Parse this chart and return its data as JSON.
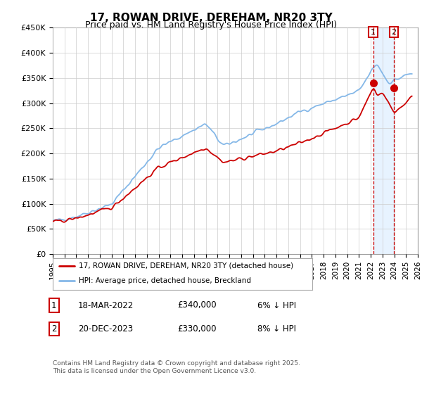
{
  "title": "17, ROWAN DRIVE, DEREHAM, NR20 3TY",
  "subtitle": "Price paid vs. HM Land Registry's House Price Index (HPI)",
  "ylim": [
    0,
    450000
  ],
  "yticks": [
    0,
    50000,
    100000,
    150000,
    200000,
    250000,
    300000,
    350000,
    400000,
    450000
  ],
  "ytick_labels": [
    "£0",
    "£50K",
    "£100K",
    "£150K",
    "£200K",
    "£250K",
    "£300K",
    "£350K",
    "£400K",
    "£450K"
  ],
  "hpi_color": "#85b8e8",
  "price_color": "#cc0000",
  "vline_color": "#cc0000",
  "shade_color": "#ddeeff",
  "sale1_x": 2022.21,
  "sale2_x": 2023.97,
  "sale1_price": 340000,
  "sale2_price": 330000,
  "legend_label1": "17, ROWAN DRIVE, DEREHAM, NR20 3TY (detached house)",
  "legend_label2": "HPI: Average price, detached house, Breckland",
  "table_row1": [
    "1",
    "18-MAR-2022",
    "£340,000",
    "6% ↓ HPI"
  ],
  "table_row2": [
    "2",
    "20-DEC-2023",
    "£330,000",
    "8% ↓ HPI"
  ],
  "footnote": "Contains HM Land Registry data © Crown copyright and database right 2025.\nThis data is licensed under the Open Government Licence v3.0.",
  "background_color": "#ffffff",
  "grid_color": "#cccccc",
  "xlim_start": 1995,
  "xlim_end": 2026
}
